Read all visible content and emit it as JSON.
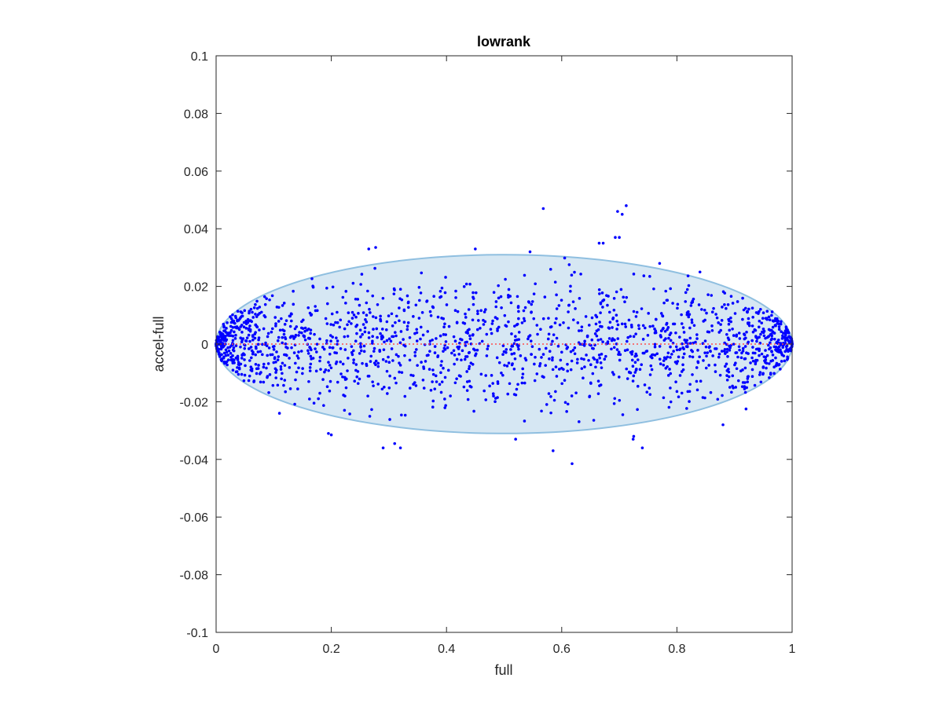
{
  "chart_data": {
    "type": "scatter",
    "title": "lowrank",
    "xlabel": "full",
    "ylabel": "accel-full",
    "xlim": [
      0,
      1
    ],
    "ylim": [
      -0.1,
      0.1
    ],
    "x_ticks": [
      0,
      0.2,
      0.4,
      0.6,
      0.8,
      1
    ],
    "x_tick_labels": [
      "0",
      "0.2",
      "0.4",
      "0.6",
      "0.8",
      "1"
    ],
    "y_ticks": [
      -0.1,
      -0.08,
      -0.06,
      -0.04,
      -0.02,
      0,
      0.02,
      0.04,
      0.06,
      0.08,
      0.1
    ],
    "y_tick_labels": [
      "-0.1",
      "-0.08",
      "-0.06",
      "-0.04",
      "-0.02",
      "0",
      "0.02",
      "0.04",
      "0.06",
      "0.08",
      "0.1"
    ],
    "grid": false,
    "legend": "none",
    "colors": {
      "points": "#0000ff",
      "ellipse_fill": "#d6e7f3",
      "ellipse_edge": "#8fbfe0",
      "zero_line": "#ff4d4d",
      "axes": "#262626"
    },
    "ellipse": {
      "center_x": 0.5,
      "center_y": 0,
      "semi_axis_x": 0.5,
      "semi_axis_y": 0.031
    },
    "zero_line_y": 0,
    "outliers": [
      [
        0.568,
        0.047
      ],
      [
        0.697,
        0.046
      ],
      [
        0.712,
        0.048
      ],
      [
        0.705,
        0.045
      ],
      [
        0.693,
        0.037
      ],
      [
        0.7,
        0.037
      ],
      [
        0.672,
        0.035
      ],
      [
        0.665,
        0.035
      ],
      [
        0.265,
        0.033
      ],
      [
        0.277,
        0.0335
      ],
      [
        0.45,
        0.033
      ],
      [
        0.545,
        0.032
      ],
      [
        0.195,
        -0.031
      ],
      [
        0.2,
        -0.0315
      ],
      [
        0.29,
        -0.036
      ],
      [
        0.31,
        -0.0345
      ],
      [
        0.32,
        -0.036
      ],
      [
        0.52,
        -0.033
      ],
      [
        0.585,
        -0.037
      ],
      [
        0.618,
        -0.0415
      ],
      [
        0.724,
        -0.033
      ],
      [
        0.74,
        -0.036
      ],
      [
        0.725,
        -0.032
      ],
      [
        0.88,
        -0.028
      ],
      [
        0.92,
        -0.0225
      ],
      [
        0.11,
        -0.024
      ],
      [
        0.77,
        0.028
      ],
      [
        0.84,
        0.025
      ]
    ],
    "points": {
      "count": 1800,
      "x_range": [
        0,
        1
      ],
      "y_sd": 0.011,
      "edge_clustering": true,
      "note": "dense cloud bounded mostly within the ellipse"
    }
  }
}
